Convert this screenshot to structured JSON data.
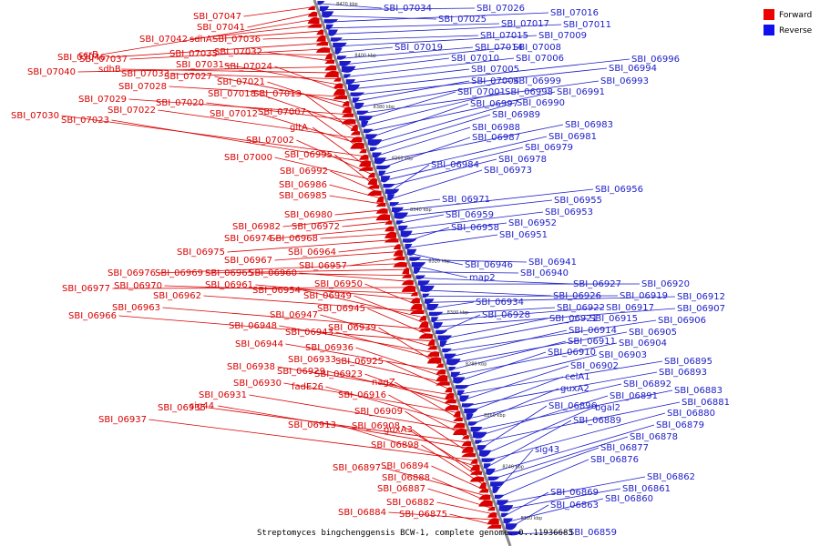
{
  "caption": "Streptomyces bingchenggensis BCW-1, complete genome. 0..11936683",
  "legend": [
    {
      "label": "Forward",
      "color": "#ee0000"
    },
    {
      "label": "Reverse",
      "color": "#1010ee"
    }
  ],
  "colors": {
    "forward": "#d90000",
    "reverse": "#1c1cc8",
    "axis": "#888888"
  },
  "kbp_ticks": [
    "8420 kbp",
    "8400 kbp",
    "8380 kbp",
    "8360 kbp",
    "8340 kbp",
    "8320 kbp",
    "8300 kbp",
    "8280 kbp",
    "8260 kbp",
    "8240 kbp",
    "8220 kbp"
  ],
  "forward_genes": [
    "SBI_07047",
    "SBI_07041",
    "ccrB",
    "SBI_07042",
    "sdhA",
    "SBI_07036",
    "SBI_07046",
    "SBI_07037",
    "SBI_07035",
    "SBI_07032",
    "SBI_07040",
    "sdhB",
    "SBI_07033",
    "SBI_07031",
    "SBI_07024",
    "SBI_07028",
    "SBI_07027",
    "SBI_07021",
    "SBI_07029",
    "SBI_07020",
    "SBI_07018",
    "SBI_07013",
    "SBI_07022",
    "SBI_07012",
    "SBI_07007",
    "SBI_07030",
    "SBI_07023",
    "gltA",
    "SBI_07002",
    "SBI_07000",
    "SBI_06995",
    "SBI_06992",
    "SBI_06986",
    "SBI_06985",
    "SBI_06980",
    "SBI_06982",
    "SBI_06972",
    "SBI_06974",
    "SBI_06968",
    "SBI_06975",
    "SBI_06964",
    "SBI_06967",
    "SBI_06957",
    "SBI_06976",
    "SBI_06969",
    "SBI_06965",
    "SBI_06960",
    "SBI_06977",
    "SBI_06970",
    "SBI_06961",
    "SBI_06950",
    "SBI_06962",
    "SBI_06954",
    "SBI_06949",
    "SBI_06963",
    "SBI_06945",
    "SBI_06966",
    "SBI_06947",
    "SBI_06948",
    "SBI_06943",
    "SBI_06939",
    "SBI_06944",
    "SBI_06936",
    "SBI_06933",
    "SBI_06925",
    "SBI_06938",
    "SBI_06929",
    "SBI_06923",
    "SBI_06930",
    "nagZ",
    "fadE26",
    "SBI_06931",
    "SBI_06916",
    "SBI_06935",
    "sig44",
    "SBI_06909",
    "SBI_06937",
    "SBI_06913",
    "SBI_06908",
    "guxA3",
    "SBI_06898",
    "SBI_06894",
    "SBI_06897",
    "SBI_06888",
    "SBI_06887",
    "SBI_06882",
    "SBI_06884",
    "SBI_06875"
  ],
  "reverse_genes": [
    "SBI_07034",
    "SBI_07026",
    "SBI_07025",
    "SBI_07016",
    "SBI_07017",
    "SBI_07011",
    "SBI_07015",
    "SBI_07009",
    "SBI_07019",
    "SBI_07014",
    "SBI_07008",
    "SBI_07010",
    "SBI_07006",
    "SBI_07005",
    "SBI_06996",
    "SBI_06994",
    "SBI_07004",
    "SBI_06999",
    "SBI_06993",
    "SBI_07001",
    "SBI_06998",
    "SBI_06991",
    "SBI_06997",
    "SBI_06990",
    "SBI_06989",
    "SBI_06988",
    "SBI_06983",
    "SBI_06987",
    "SBI_06981",
    "SBI_06979",
    "SBI_06978",
    "SBI_06984",
    "SBI_06973",
    "SBI_06971",
    "SBI_06956",
    "SBI_06955",
    "SBI_06959",
    "SBI_06953",
    "SBI_06952",
    "SBI_06958",
    "SBI_06951",
    "SBI_06946",
    "SBI_06941",
    "map2",
    "SBI_06940",
    "SBI_06927",
    "SBI_06920",
    "SBI_06926",
    "SBI_06919",
    "SBI_06912",
    "SBI_06934",
    "SBI_06922",
    "SBI_06917",
    "SBI_06907",
    "SBI_06928",
    "SBI_06921",
    "SBI_06915",
    "SBI_06906",
    "SBI_06914",
    "SBI_06905",
    "SBI_06911",
    "SBI_06904",
    "SBI_06910",
    "SBI_06903",
    "SBI_06895",
    "SBI_06902",
    "SBI_06893",
    "celA1",
    "SBI_06892",
    "guxA2",
    "SBI_06883",
    "SBI_06891",
    "SBI_06881",
    "SBI_06896",
    "bgal2",
    "SBI_06880",
    "SBI_06889",
    "SBI_06879",
    "SBI_06878",
    "SBI_06877",
    "sig43",
    "SBI_06876",
    "SBI_06862",
    "SBI_06861",
    "SBI_06869",
    "SBI_06860",
    "SBI_06863",
    "SBI_06859"
  ]
}
